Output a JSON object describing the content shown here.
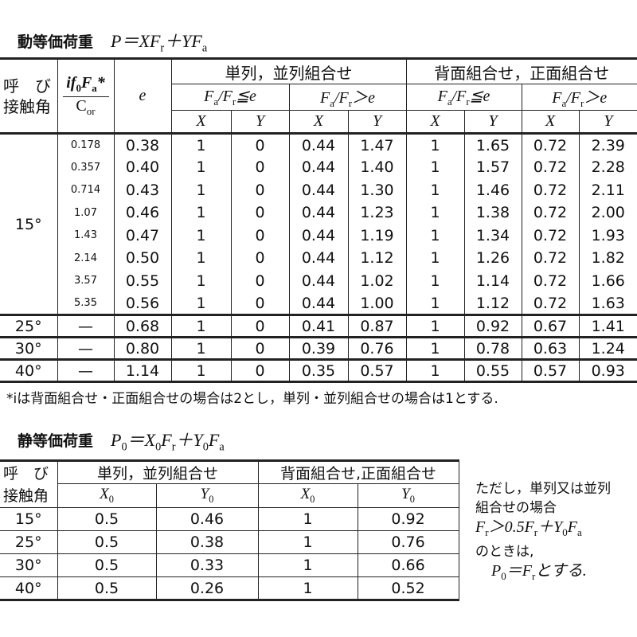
{
  "dynamic": {
    "title": "動等価荷重",
    "formula": "P＝XF_r＋YF_a",
    "headers": {
      "angle": [
        "呼　び",
        "接触角"
      ],
      "ratio_numerator": "if_0F_a*",
      "ratio_denominator": "C_or",
      "e": "e",
      "group_single": "単列，並列組合せ",
      "group_back": "背面組合せ，正面組合せ",
      "cond_le": "F_a/F_r≦e",
      "cond_gt": "F_a/F_r＞e",
      "x": "X",
      "y": "Y"
    },
    "rows": [
      {
        "angle": "15°",
        "ratio": "0.178",
        "e": "0.38",
        "v": [
          "1",
          "0",
          "0.44",
          "1.47",
          "1",
          "1.65",
          "0.72",
          "2.39"
        ]
      },
      {
        "angle": "",
        "ratio": "0.357",
        "e": "0.40",
        "v": [
          "1",
          "0",
          "0.44",
          "1.40",
          "1",
          "1.57",
          "0.72",
          "2.28"
        ]
      },
      {
        "angle": "",
        "ratio": "0.714",
        "e": "0.43",
        "v": [
          "1",
          "0",
          "0.44",
          "1.30",
          "1",
          "1.46",
          "0.72",
          "2.11"
        ]
      },
      {
        "angle": "",
        "ratio": "1.07",
        "e": "0.46",
        "v": [
          "1",
          "0",
          "0.44",
          "1.23",
          "1",
          "1.38",
          "0.72",
          "2.00"
        ]
      },
      {
        "angle": "",
        "ratio": "1.43",
        "e": "0.47",
        "v": [
          "1",
          "0",
          "0.44",
          "1.19",
          "1",
          "1.34",
          "0.72",
          "1.93"
        ]
      },
      {
        "angle": "",
        "ratio": "2.14",
        "e": "0.50",
        "v": [
          "1",
          "0",
          "0.44",
          "1.12",
          "1",
          "1.26",
          "0.72",
          "1.82"
        ]
      },
      {
        "angle": "",
        "ratio": "3.57",
        "e": "0.55",
        "v": [
          "1",
          "0",
          "0.44",
          "1.02",
          "1",
          "1.14",
          "0.72",
          "1.66"
        ]
      },
      {
        "angle": "",
        "ratio": "5.35",
        "e": "0.56",
        "v": [
          "1",
          "0",
          "0.44",
          "1.00",
          "1",
          "1.12",
          "0.72",
          "1.63"
        ]
      },
      {
        "angle": "25°",
        "ratio": "—",
        "e": "0.68",
        "v": [
          "1",
          "0",
          "0.41",
          "0.87",
          "1",
          "0.92",
          "0.67",
          "1.41"
        ]
      },
      {
        "angle": "30°",
        "ratio": "—",
        "e": "0.80",
        "v": [
          "1",
          "0",
          "0.39",
          "0.76",
          "1",
          "0.78",
          "0.63",
          "1.24"
        ]
      },
      {
        "angle": "40°",
        "ratio": "—",
        "e": "1.14",
        "v": [
          "1",
          "0",
          "0.35",
          "0.57",
          "1",
          "0.55",
          "0.57",
          "0.93"
        ]
      }
    ],
    "footnote": "*iは背面組合せ・正面組合せの場合は2とし，単列・並列組合せの場合は1とする."
  },
  "static": {
    "title": "静等価荷重",
    "formula": "P_0＝X_0F_r＋Y_0F_a",
    "headers": {
      "angle": [
        "呼　び",
        "接触角"
      ],
      "group_single": "単列，並列組合せ",
      "group_back": "背面組合せ,正面組合せ",
      "x0": "X_0",
      "y0": "Y_0"
    },
    "rows": [
      {
        "angle": "15°",
        "v": [
          "0.5",
          "0.46",
          "1",
          "0.92"
        ]
      },
      {
        "angle": "25°",
        "v": [
          "0.5",
          "0.38",
          "1",
          "0.76"
        ]
      },
      {
        "angle": "30°",
        "v": [
          "0.5",
          "0.33",
          "1",
          "0.66"
        ]
      },
      {
        "angle": "40°",
        "v": [
          "0.5",
          "0.26",
          "1",
          "0.52"
        ]
      }
    ],
    "note": [
      "ただし，単列又は並列",
      "組合せの場合",
      "F_r＞0.5F_r＋Y_0F_a",
      "のときは,",
      "　P_0＝F_rとする."
    ]
  }
}
